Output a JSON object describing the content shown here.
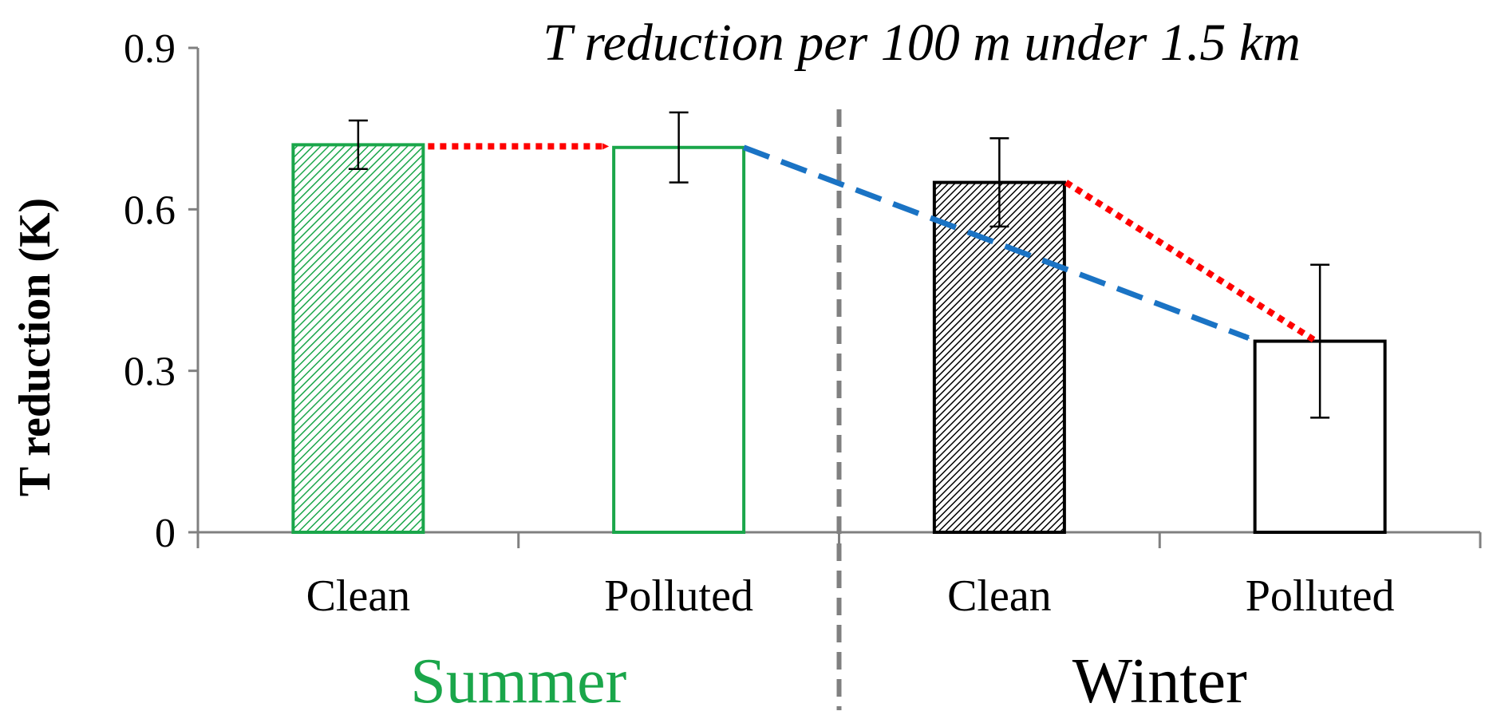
{
  "chart_data": {
    "type": "bar",
    "title": "T reduction per 100 m under 1.5 km",
    "ylabel": "T reduction (K)",
    "xlabel": "",
    "ylim": [
      0,
      0.9
    ],
    "yticks": [
      "0",
      "0.3",
      "0.6",
      "0.9"
    ],
    "grid": false,
    "groups": [
      {
        "name": "Summer",
        "color": "#1aa64a"
      },
      {
        "name": "Winter",
        "color": "#000000"
      }
    ],
    "bars": [
      {
        "category": "Clean",
        "group": "Summer",
        "value": 0.72,
        "error": 0.045,
        "color": "#1aa64a",
        "fill": "hatched"
      },
      {
        "category": "Polluted",
        "group": "Summer",
        "value": 0.715,
        "error": 0.065,
        "color": "#1aa64a",
        "fill": "none"
      },
      {
        "category": "Clean",
        "group": "Winter",
        "value": 0.65,
        "error": 0.082,
        "color": "#000000",
        "fill": "hatched"
      },
      {
        "category": "Polluted",
        "group": "Winter",
        "value": 0.355,
        "error": 0.142,
        "color": "#000000",
        "fill": "none"
      }
    ],
    "arrows": [
      {
        "style": "dotted",
        "color": "#ff0000",
        "from_bar": 0,
        "to_bar": 1
      },
      {
        "style": "dashed",
        "color": "#1a73c4",
        "from_bar": 1,
        "to_bar": 3
      },
      {
        "style": "dotted",
        "color": "#ff0000",
        "from_bar": 2,
        "to_bar": 3
      }
    ],
    "separator": {
      "style": "dashed",
      "color": "#808080"
    }
  }
}
